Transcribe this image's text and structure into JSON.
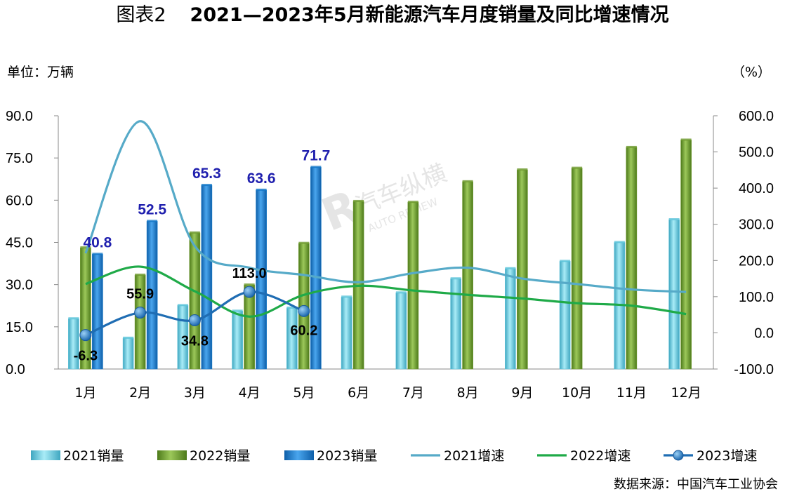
{
  "title": {
    "prefix": "图表2",
    "main": "2021—2023年5月新能源汽车月度销量及同比增速情况"
  },
  "y_left_label": "单位：万辆",
  "y_right_label": "（%）",
  "source": "数据来源：中国汽车工业协会",
  "watermark": {
    "cn": "汽车纵横",
    "en": "AUTO REVIEW"
  },
  "colors": {
    "s2021": "#5cc4da",
    "s2022": "#6e9a2e",
    "s2023": "#1478c8",
    "g2021": "#56aac8",
    "g2022": "#1faa48",
    "g2023": "#1f6db3"
  },
  "chart_data": {
    "type": "bar",
    "categories": [
      "1月",
      "2月",
      "3月",
      "4月",
      "5月",
      "6月",
      "7月",
      "8月",
      "9月",
      "10月",
      "11月",
      "12月"
    ],
    "ylim": [
      0,
      90
    ],
    "yticks": [
      "0.0",
      "15.0",
      "30.0",
      "45.0",
      "60.0",
      "75.0",
      "90.0"
    ],
    "y2lim": [
      -100,
      600
    ],
    "y2ticks": [
      "-100.0",
      "0.0",
      "100.0",
      "200.0",
      "300.0",
      "400.0",
      "500.0",
      "600.0"
    ],
    "bars": [
      {
        "name": "2021销量",
        "values": [
          17.9,
          11.0,
          22.6,
          20.6,
          21.7,
          25.6,
          27.1,
          32.1,
          35.7,
          38.3,
          45.0,
          53.1
        ]
      },
      {
        "name": "2022销量",
        "values": [
          43.1,
          33.4,
          48.4,
          29.9,
          44.7,
          59.6,
          59.3,
          66.6,
          70.8,
          71.4,
          78.8,
          81.4
        ]
      },
      {
        "name": "2023销量",
        "values": [
          40.8,
          52.5,
          65.3,
          63.6,
          71.7
        ],
        "labels": [
          "40.8",
          "52.5",
          "65.3",
          "63.6",
          "71.7"
        ]
      }
    ],
    "lines": [
      {
        "name": "2021增速",
        "values": [
          220,
          585,
          240,
          180,
          160,
          140,
          165,
          180,
          150,
          135,
          120,
          113
        ]
      },
      {
        "name": "2022增速",
        "values": [
          135,
          183,
          115,
          45,
          105,
          130,
          117,
          105,
          95,
          82,
          75,
          52
        ]
      },
      {
        "name": "2023增速",
        "values": [
          -6.3,
          55.9,
          34.8,
          113.0,
          60.2
        ],
        "labels": [
          "-6.3",
          "55.9",
          "34.8",
          "113.0",
          "60.2"
        ]
      }
    ],
    "legend": [
      "2021销量",
      "2022销量",
      "2023销量",
      "2021增速",
      "2022增速",
      "2023增速"
    ]
  }
}
